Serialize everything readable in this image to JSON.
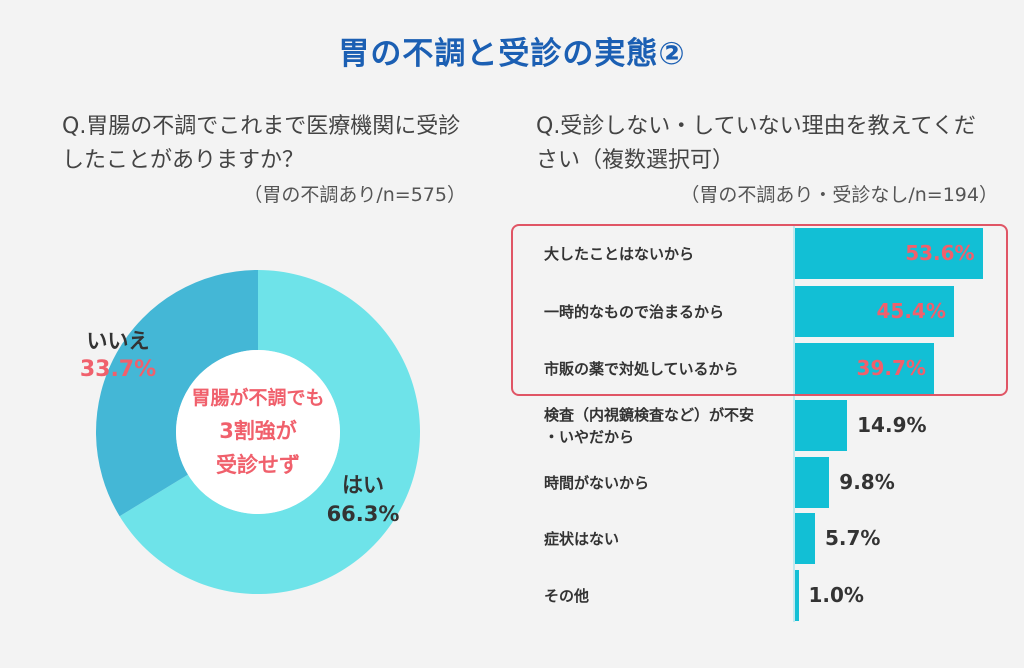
{
  "title": "胃の不調と受診の実態②",
  "left": {
    "question": "Q.胃腸の不調でこれまで医療機関に受診したことがありますか？",
    "note": "（胃の不調あり/n=575）"
  },
  "right": {
    "question": "Q.受診しない・していない理由を教えてください（複数選択可）",
    "note": "（胃の不調あり・受診なし/n=194）"
  },
  "chart_data": [
    {
      "type": "pie",
      "categories": [
        "はい",
        "いいえ"
      ],
      "values": [
        66.3,
        33.7
      ],
      "value_labels": [
        "66.3%",
        "33.7%"
      ],
      "center_text": [
        "胃腸が不調でも",
        "3割強が",
        "受診せず"
      ],
      "colors": [
        "#6ee3e9",
        "#44b7d6"
      ]
    },
    {
      "type": "bar",
      "orientation": "horizontal",
      "categories": [
        "大したことはないから",
        "一時的なもので治まるから",
        "市販の薬で対処しているから",
        "検査（内視鏡検査など）が不安・いやだから",
        "時間がないから",
        "症状はない",
        "その他"
      ],
      "category_lines": [
        [
          "大したことはないから"
        ],
        [
          "一時的なもので治まるから"
        ],
        [
          "市販の薬で対処しているから"
        ],
        [
          "検査（内視鏡検査など）が不安",
          "・いやだから"
        ],
        [
          "時間がないから"
        ],
        [
          "症状はない"
        ],
        [
          "その他"
        ]
      ],
      "values": [
        53.6,
        45.4,
        39.7,
        14.9,
        9.8,
        5.7,
        1.0
      ],
      "value_labels": [
        "53.6%",
        "45.4%",
        "39.7%",
        "14.9%",
        "9.8%",
        "5.7%",
        "1.0%"
      ],
      "highlight_top": 3,
      "xlim": [
        0,
        70
      ],
      "color": "#12bfd5",
      "highlight_color": "#f0606c"
    }
  ]
}
